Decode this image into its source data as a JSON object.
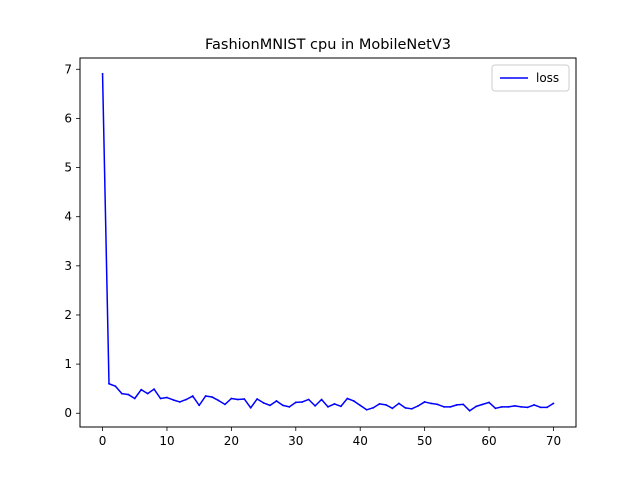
{
  "chart_data": {
    "type": "line",
    "title": "FashionMNIST cpu in MobileNetV3",
    "xlabel": "",
    "ylabel": "",
    "xlim": [
      -3.5,
      73.5
    ],
    "ylim": [
      -0.28,
      7.23
    ],
    "x_ticks": [
      0,
      10,
      20,
      30,
      40,
      50,
      60,
      70
    ],
    "y_ticks": [
      0,
      1,
      2,
      3,
      4,
      5,
      6,
      7
    ],
    "grid": false,
    "legend_position": "upper right",
    "series": [
      {
        "name": "loss",
        "color": "#0000ff",
        "x": [
          0,
          1,
          2,
          3,
          4,
          5,
          6,
          7,
          8,
          9,
          10,
          11,
          12,
          13,
          14,
          15,
          16,
          17,
          18,
          19,
          20,
          21,
          22,
          23,
          24,
          25,
          26,
          27,
          28,
          29,
          30,
          31,
          32,
          33,
          34,
          35,
          36,
          37,
          38,
          39,
          40,
          41,
          42,
          43,
          44,
          45,
          46,
          47,
          48,
          49,
          50,
          51,
          52,
          53,
          54,
          55,
          56,
          57,
          58,
          59,
          60,
          61,
          62,
          63,
          64,
          65,
          66,
          67,
          68,
          69,
          70
        ],
        "values": [
          6.91,
          0.6,
          0.55,
          0.4,
          0.38,
          0.3,
          0.48,
          0.4,
          0.49,
          0.3,
          0.32,
          0.27,
          0.23,
          0.28,
          0.35,
          0.16,
          0.35,
          0.33,
          0.26,
          0.18,
          0.3,
          0.28,
          0.29,
          0.11,
          0.29,
          0.21,
          0.16,
          0.25,
          0.16,
          0.13,
          0.22,
          0.23,
          0.28,
          0.15,
          0.28,
          0.13,
          0.19,
          0.14,
          0.3,
          0.25,
          0.16,
          0.07,
          0.11,
          0.19,
          0.17,
          0.1,
          0.2,
          0.11,
          0.09,
          0.15,
          0.23,
          0.2,
          0.18,
          0.13,
          0.13,
          0.17,
          0.18,
          0.05,
          0.14,
          0.18,
          0.22,
          0.1,
          0.13,
          0.13,
          0.15,
          0.13,
          0.12,
          0.17,
          0.12,
          0.12,
          0.2
        ]
      }
    ]
  }
}
